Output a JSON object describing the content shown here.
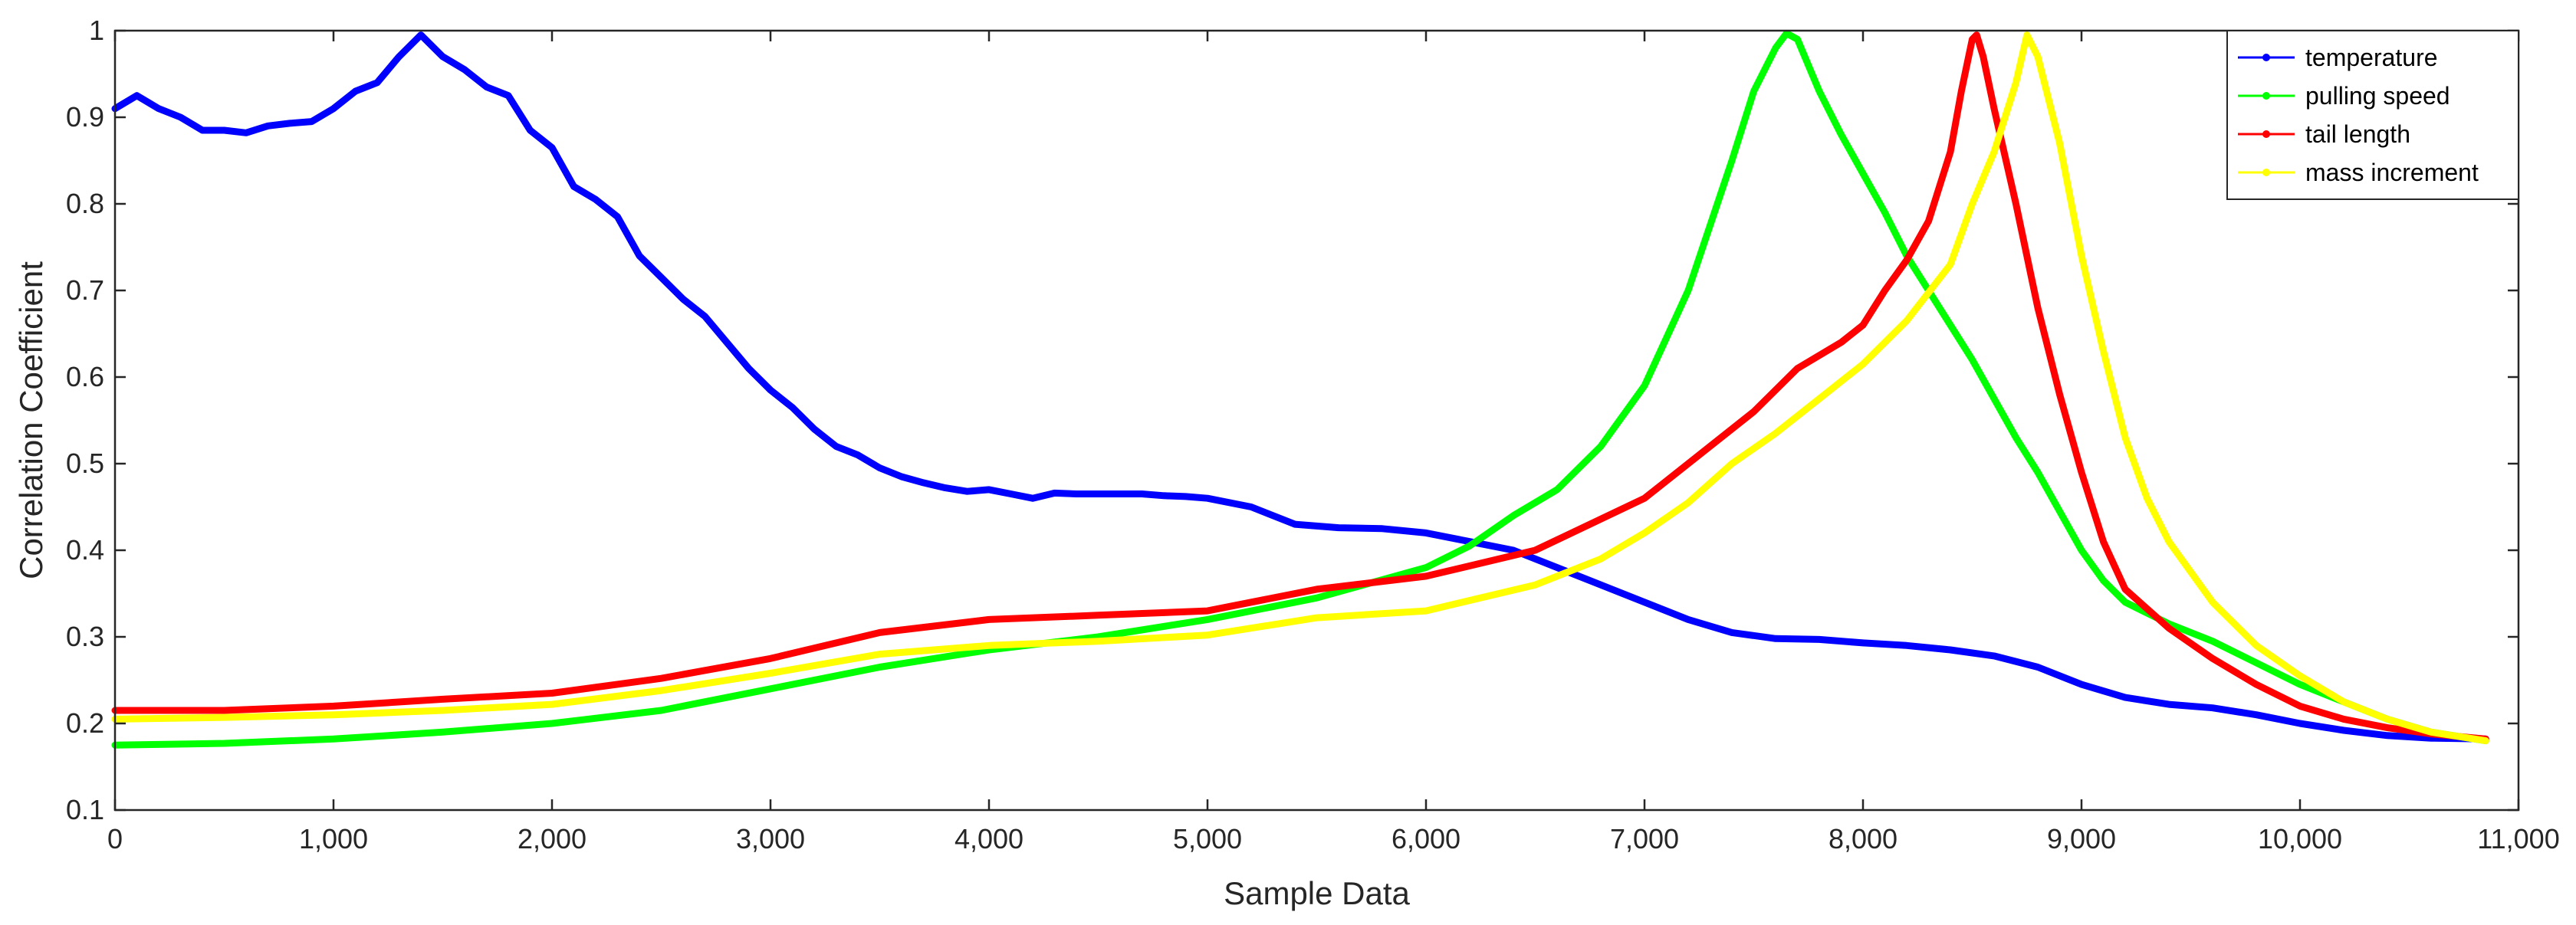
{
  "chart_data": {
    "type": "line",
    "title": "",
    "xlabel": "Sample Data",
    "ylabel": "Correlation Coefficient",
    "xlim": [
      0,
      11000
    ],
    "ylim": [
      0.1,
      1
    ],
    "x_ticks": [
      "0",
      "1,000",
      "2,000",
      "3,000",
      "4,000",
      "5,000",
      "6,000",
      "7,000",
      "8,000",
      "9,000",
      "10,000",
      "11,000"
    ],
    "y_ticks": [
      "0.1",
      "0.2",
      "0.3",
      "0.4",
      "0.5",
      "0.6",
      "0.7",
      "0.8",
      "0.9",
      "1"
    ],
    "grid": false,
    "legend_position": "top-right",
    "series": [
      {
        "name": "temperature",
        "color": "#0000ff",
        "x": [
          0,
          100,
          200,
          300,
          400,
          500,
          600,
          700,
          800,
          900,
          1000,
          1100,
          1200,
          1300,
          1400,
          1500,
          1600,
          1700,
          1800,
          1900,
          2000,
          2100,
          2200,
          2300,
          2400,
          2500,
          2600,
          2700,
          2800,
          2900,
          3000,
          3100,
          3200,
          3300,
          3400,
          3500,
          3600,
          3700,
          3800,
          3900,
          4000,
          4100,
          4200,
          4300,
          4400,
          4500,
          4600,
          4700,
          4800,
          4900,
          5000,
          5200,
          5400,
          5600,
          5800,
          6000,
          6200,
          6400,
          6600,
          6800,
          7000,
          7200,
          7400,
          7600,
          7800,
          8000,
          8200,
          8400,
          8600,
          8800,
          9000,
          9200,
          9400,
          9600,
          9800,
          10000,
          10200,
          10400,
          10600,
          10850
        ],
        "y": [
          0.91,
          0.925,
          0.91,
          0.9,
          0.885,
          0.885,
          0.882,
          0.89,
          0.893,
          0.895,
          0.91,
          0.93,
          0.94,
          0.97,
          0.995,
          0.97,
          0.955,
          0.935,
          0.925,
          0.885,
          0.865,
          0.82,
          0.805,
          0.785,
          0.74,
          0.715,
          0.69,
          0.67,
          0.64,
          0.61,
          0.585,
          0.565,
          0.54,
          0.52,
          0.51,
          0.495,
          0.485,
          0.478,
          0.472,
          0.468,
          0.47,
          0.465,
          0.46,
          0.466,
          0.465,
          0.465,
          0.465,
          0.465,
          0.463,
          0.462,
          0.46,
          0.45,
          0.43,
          0.426,
          0.425,
          0.42,
          0.41,
          0.4,
          0.38,
          0.36,
          0.34,
          0.32,
          0.305,
          0.298,
          0.297,
          0.293,
          0.29,
          0.285,
          0.278,
          0.265,
          0.245,
          0.23,
          0.222,
          0.218,
          0.21,
          0.2,
          0.192,
          0.186,
          0.183,
          0.182
        ]
      },
      {
        "name": "pulling speed",
        "color": "#00ff00",
        "x": [
          0,
          500,
          1000,
          1500,
          2000,
          2500,
          3000,
          3500,
          4000,
          4500,
          5000,
          5500,
          6000,
          6200,
          6400,
          6600,
          6800,
          7000,
          7200,
          7400,
          7500,
          7600,
          7650,
          7700,
          7800,
          7900,
          8000,
          8100,
          8200,
          8300,
          8400,
          8500,
          8600,
          8700,
          8800,
          8900,
          9000,
          9100,
          9200,
          9400,
          9600,
          9800,
          10000,
          10200,
          10400,
          10600,
          10850
        ],
        "y": [
          0.175,
          0.177,
          0.182,
          0.19,
          0.2,
          0.215,
          0.24,
          0.265,
          0.285,
          0.3,
          0.32,
          0.345,
          0.38,
          0.405,
          0.44,
          0.47,
          0.52,
          0.59,
          0.7,
          0.85,
          0.93,
          0.98,
          0.997,
          0.99,
          0.93,
          0.88,
          0.835,
          0.79,
          0.74,
          0.7,
          0.66,
          0.62,
          0.575,
          0.53,
          0.49,
          0.445,
          0.4,
          0.365,
          0.34,
          0.315,
          0.295,
          0.27,
          0.245,
          0.225,
          0.205,
          0.19,
          0.18
        ]
      },
      {
        "name": "tail length",
        "color": "#ff0000",
        "x": [
          0,
          500,
          1000,
          1500,
          2000,
          2500,
          3000,
          3500,
          4000,
          4500,
          5000,
          5500,
          6000,
          6500,
          7000,
          7500,
          7700,
          7900,
          8000,
          8100,
          8200,
          8300,
          8400,
          8450,
          8500,
          8520,
          8550,
          8600,
          8700,
          8800,
          8900,
          9000,
          9100,
          9200,
          9400,
          9600,
          9800,
          10000,
          10200,
          10400,
          10600,
          10850
        ],
        "y": [
          0.215,
          0.215,
          0.22,
          0.228,
          0.235,
          0.252,
          0.275,
          0.305,
          0.32,
          0.325,
          0.33,
          0.355,
          0.37,
          0.4,
          0.46,
          0.56,
          0.61,
          0.64,
          0.66,
          0.7,
          0.735,
          0.78,
          0.86,
          0.93,
          0.99,
          0.995,
          0.97,
          0.91,
          0.8,
          0.68,
          0.58,
          0.49,
          0.41,
          0.355,
          0.31,
          0.275,
          0.245,
          0.22,
          0.205,
          0.195,
          0.188,
          0.182
        ]
      },
      {
        "name": "mass increment",
        "color": "#ffff00",
        "x": [
          0,
          500,
          1000,
          1500,
          2000,
          2500,
          3000,
          3500,
          4000,
          4500,
          5000,
          5500,
          6000,
          6500,
          6800,
          7000,
          7200,
          7400,
          7600,
          7800,
          8000,
          8200,
          8400,
          8500,
          8600,
          8700,
          8750,
          8800,
          8900,
          9000,
          9100,
          9200,
          9300,
          9400,
          9600,
          9800,
          10000,
          10200,
          10400,
          10600,
          10850
        ],
        "y": [
          0.205,
          0.207,
          0.21,
          0.215,
          0.222,
          0.238,
          0.258,
          0.28,
          0.29,
          0.295,
          0.302,
          0.322,
          0.33,
          0.36,
          0.39,
          0.42,
          0.455,
          0.5,
          0.535,
          0.575,
          0.615,
          0.665,
          0.73,
          0.8,
          0.86,
          0.94,
          0.995,
          0.97,
          0.87,
          0.74,
          0.63,
          0.53,
          0.46,
          0.41,
          0.34,
          0.29,
          0.255,
          0.225,
          0.205,
          0.19,
          0.18
        ]
      }
    ]
  }
}
